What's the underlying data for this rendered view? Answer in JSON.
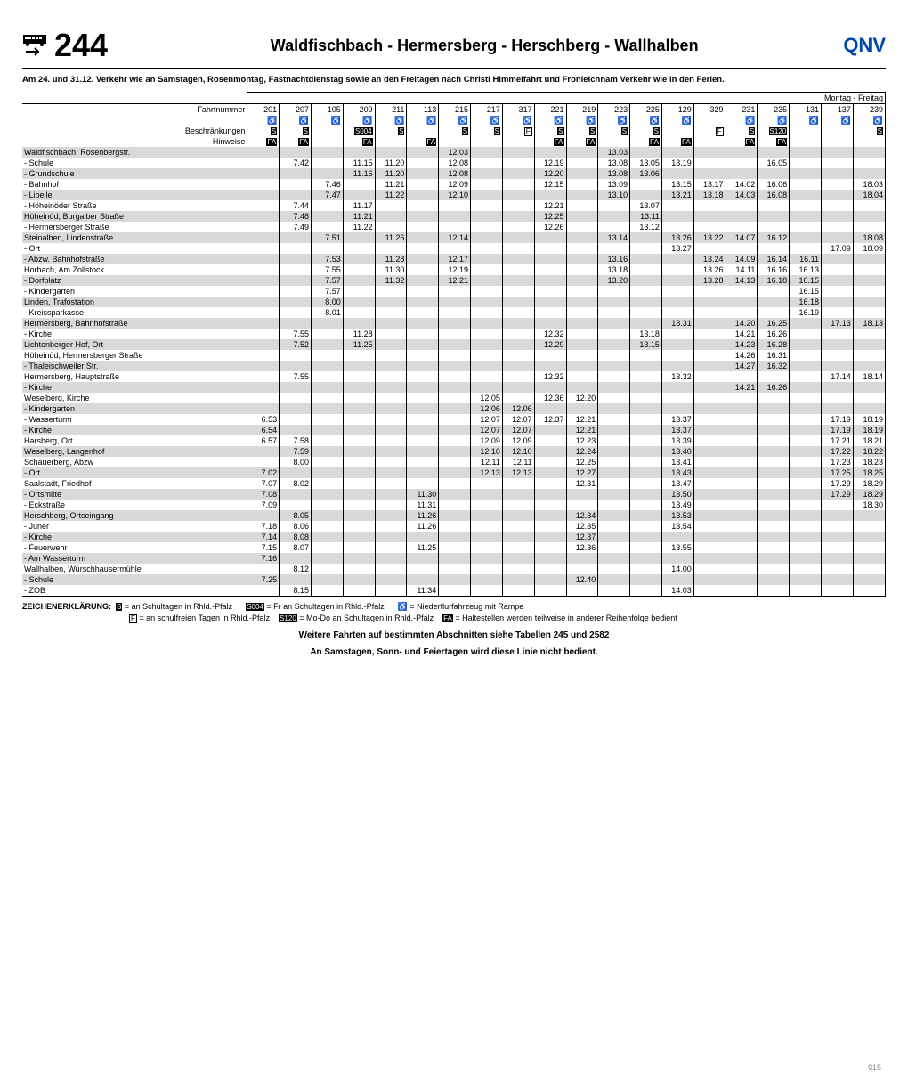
{
  "route_number": "244",
  "route_title": "Waldfischbach - Hermersberg - Herschberg - Wallhalben",
  "operator": "QNV",
  "top_note": "Am 24. und 31.12. Verkehr wie an Samstagen, Rosenmontag, Fastnachtdienstag sowie an den Freitagen nach Christi Himmelfahrt und Fronleichnam Verkehr wie in den Ferien.",
  "day_label": "Montag - Freitag",
  "row_labels": [
    "Fahrtnummer",
    "",
    "Beschränkungen",
    "Hinweise"
  ],
  "trips": [
    "201",
    "207",
    "105",
    "209",
    "211",
    "113",
    "215",
    "217",
    "317",
    "221",
    "219",
    "223",
    "225",
    "129",
    "329",
    "231",
    "235",
    "131",
    "137",
    "239"
  ],
  "ramp_row": [
    "r",
    "r",
    "r",
    "r",
    "r",
    "r",
    "r",
    "r",
    "r",
    "r",
    "r",
    "r",
    "r",
    "r",
    "",
    "r",
    "r",
    "r",
    "r",
    "r"
  ],
  "restrict_row": [
    "S",
    "S",
    "",
    "S004",
    "S",
    "",
    "S",
    "S",
    "F",
    "S",
    "S",
    "S",
    "S",
    "",
    "F",
    "S",
    "S120",
    "",
    "",
    "S"
  ],
  "hint_row": [
    "FA",
    "FA",
    "",
    "FA",
    "",
    "FA",
    "",
    "",
    "",
    "FA",
    "FA",
    "",
    "FA",
    "FA",
    "",
    "FA",
    "FA",
    "",
    "",
    ""
  ],
  "stops": [
    {
      "n": "Waldfischbach, Rosenbergstr.",
      "s": 1,
      "t": [
        "",
        "",
        "",
        "",
        "",
        "",
        "12.03",
        "",
        "",
        "",
        "",
        "13.03",
        "",
        "",
        "",
        "",
        "",
        "",
        "",
        ""
      ]
    },
    {
      "n": "- Schule",
      "s": 0,
      "t": [
        "",
        "7.42",
        "",
        "11.15",
        "11.20",
        "",
        "12.08",
        "",
        "",
        "12.19",
        "",
        "13.08",
        "13.05",
        "13.19",
        "",
        "",
        "16.05",
        "",
        "",
        ""
      ]
    },
    {
      "n": "- Grundschule",
      "s": 1,
      "t": [
        "",
        "",
        "",
        "11.16",
        "11.20",
        "",
        "12.08",
        "",
        "",
        "12.20",
        "",
        "13.08",
        "13.06",
        "",
        "",
        "",
        "",
        "",
        "",
        ""
      ]
    },
    {
      "n": "- Bahnhof",
      "s": 0,
      "t": [
        "",
        "",
        "7.46",
        "",
        "11.21",
        "",
        "12.09",
        "",
        "",
        "12.15",
        "",
        "13.09",
        "",
        "13.15",
        "13.17",
        "14.02",
        "16.06",
        "",
        "",
        "18.03"
      ]
    },
    {
      "n": "- Libelle",
      "s": 1,
      "t": [
        "",
        "",
        "7.47",
        "",
        "11.22",
        "",
        "12.10",
        "",
        "",
        "",
        "",
        "13.10",
        "",
        "13.21",
        "13.18",
        "14.03",
        "16.08",
        "",
        "",
        "18.04"
      ]
    },
    {
      "n": "- Höheinöder Straße",
      "s": 0,
      "t": [
        "",
        "7.44",
        "",
        "11.17",
        "",
        "",
        "",
        "",
        "",
        "12.21",
        "",
        "",
        "13.07",
        "",
        "",
        "",
        "",
        "",
        "",
        ""
      ]
    },
    {
      "n": "Höheinöd, Burgalber Straße",
      "s": 1,
      "t": [
        "",
        "7.48",
        "",
        "11.21",
        "",
        "",
        "",
        "",
        "",
        "12.25",
        "",
        "",
        "13.11",
        "",
        "",
        "",
        "",
        "",
        "",
        ""
      ]
    },
    {
      "n": "- Hermersberger Straße",
      "s": 0,
      "t": [
        "",
        "7.49",
        "",
        "11.22",
        "",
        "",
        "",
        "",
        "",
        "12.26",
        "",
        "",
        "13.12",
        "",
        "",
        "",
        "",
        "",
        "",
        ""
      ]
    },
    {
      "n": "Steinalben, Lindenstraße",
      "s": 1,
      "t": [
        "",
        "",
        "7.51",
        "",
        "11.26",
        "",
        "12.14",
        "",
        "",
        "",
        "",
        "13.14",
        "",
        "13.26",
        "13.22",
        "14.07",
        "16.12",
        "",
        "",
        "18.08"
      ]
    },
    {
      "n": "- Ort",
      "s": 0,
      "t": [
        "",
        "",
        "",
        "",
        "",
        "",
        "",
        "",
        "",
        "",
        "",
        "",
        "",
        "13.27",
        "",
        "",
        "",
        "",
        "17.09",
        "18.09"
      ]
    },
    {
      "n": "- Abzw. Bahnhofstraße",
      "s": 1,
      "t": [
        "",
        "",
        "7.53",
        "",
        "11.28",
        "",
        "12.17",
        "",
        "",
        "",
        "",
        "13.16",
        "",
        "",
        "13.24",
        "14.09",
        "16.14",
        "16.11",
        "",
        ""
      ]
    },
    {
      "n": "Horbach, Am Zollstock",
      "s": 0,
      "t": [
        "",
        "",
        "7.55",
        "",
        "11.30",
        "",
        "12.19",
        "",
        "",
        "",
        "",
        "13.18",
        "",
        "",
        "13.26",
        "14.11",
        "16.16",
        "16.13",
        "",
        ""
      ]
    },
    {
      "n": "- Dorfplatz",
      "s": 1,
      "t": [
        "",
        "",
        "7.57",
        "",
        "11.32",
        "",
        "12.21",
        "",
        "",
        "",
        "",
        "13.20",
        "",
        "",
        "13.28",
        "14.13",
        "16.18",
        "16.15",
        "",
        ""
      ]
    },
    {
      "n": "- Kindergarten",
      "s": 0,
      "t": [
        "",
        "",
        "7.57",
        "",
        "",
        "",
        "",
        "",
        "",
        "",
        "",
        "",
        "",
        "",
        "",
        "",
        "",
        "16.15",
        "",
        ""
      ]
    },
    {
      "n": "Linden, Trafostation",
      "s": 1,
      "t": [
        "",
        "",
        "8.00",
        "",
        "",
        "",
        "",
        "",
        "",
        "",
        "",
        "",
        "",
        "",
        "",
        "",
        "",
        "16.18",
        "",
        ""
      ]
    },
    {
      "n": "- Kreissparkasse",
      "s": 0,
      "t": [
        "",
        "",
        "8.01",
        "",
        "",
        "",
        "",
        "",
        "",
        "",
        "",
        "",
        "",
        "",
        "",
        "",
        "",
        "16.19",
        "",
        ""
      ]
    },
    {
      "n": "Hermersberg, Bahnhofstraße",
      "s": 1,
      "t": [
        "",
        "",
        "",
        "",
        "",
        "",
        "",
        "",
        "",
        "",
        "",
        "",
        "",
        "13.31",
        "",
        "14.20",
        "16.25",
        "",
        "17.13",
        "18.13"
      ]
    },
    {
      "n": "- Kirche",
      "s": 0,
      "t": [
        "",
        "7.55",
        "",
        "11.28",
        "",
        "",
        "",
        "",
        "",
        "12.32",
        "",
        "",
        "13.18",
        "",
        "",
        "14.21",
        "16.26",
        "",
        "",
        ""
      ]
    },
    {
      "n": "Lichtenberger Hof, Ort",
      "s": 1,
      "t": [
        "",
        "7.52",
        "",
        "11.25",
        "",
        "",
        "",
        "",
        "",
        "12.29",
        "",
        "",
        "13.15",
        "",
        "",
        "14.23",
        "16.28",
        "",
        "",
        ""
      ]
    },
    {
      "n": "Höheinöd, Hermersberger Straße",
      "s": 0,
      "t": [
        "",
        "",
        "",
        "",
        "",
        "",
        "",
        "",
        "",
        "",
        "",
        "",
        "",
        "",
        "",
        "14.26",
        "16.31",
        "",
        "",
        ""
      ]
    },
    {
      "n": "- Thaleischweiler Str.",
      "s": 1,
      "t": [
        "",
        "",
        "",
        "",
        "",
        "",
        "",
        "",
        "",
        "",
        "",
        "",
        "",
        "",
        "",
        "14.27",
        "16.32",
        "",
        "",
        ""
      ]
    },
    {
      "n": "Hermersberg, Hauptstraße",
      "s": 0,
      "t": [
        "",
        "7.55",
        "",
        "",
        "",
        "",
        "",
        "",
        "",
        "12.32",
        "",
        "",
        "",
        "13.32",
        "",
        "",
        "",
        "",
        "17.14",
        "18.14"
      ]
    },
    {
      "n": "- Kirche",
      "s": 1,
      "t": [
        "",
        "",
        "",
        "",
        "",
        "",
        "",
        "",
        "",
        "",
        "",
        "",
        "",
        "",
        "",
        "14.21",
        "16.26",
        "",
        "",
        ""
      ]
    },
    {
      "n": "Weselberg, Kirche",
      "s": 0,
      "t": [
        "",
        "",
        "",
        "",
        "",
        "",
        "",
        "12.05",
        "",
        "12.36",
        "12.20",
        "",
        "",
        "",
        "",
        "",
        "",
        "",
        "",
        ""
      ]
    },
    {
      "n": "- Kindergarten",
      "s": 1,
      "t": [
        "",
        "",
        "",
        "",
        "",
        "",
        "",
        "12.06",
        "12.06",
        "",
        "",
        "",
        "",
        "",
        "",
        "",
        "",
        "",
        "",
        ""
      ]
    },
    {
      "n": "- Wasserturm",
      "s": 0,
      "t": [
        "6.53",
        "",
        "",
        "",
        "",
        "",
        "",
        "12.07",
        "12.07",
        "12.37",
        "12.21",
        "",
        "",
        "13.37",
        "",
        "",
        "",
        "",
        "17.19",
        "18.19"
      ]
    },
    {
      "n": "- Kirche",
      "s": 1,
      "t": [
        "6.54",
        "",
        "",
        "",
        "",
        "",
        "",
        "12.07",
        "12.07",
        "",
        "12.21",
        "",
        "",
        "13.37",
        "",
        "",
        "",
        "",
        "17.19",
        "18.19"
      ]
    },
    {
      "n": "Harsberg, Ort",
      "s": 0,
      "t": [
        "6.57",
        "7.58",
        "",
        "",
        "",
        "",
        "",
        "12.09",
        "12.09",
        "",
        "12.23",
        "",
        "",
        "13.39",
        "",
        "",
        "",
        "",
        "17.21",
        "18.21"
      ]
    },
    {
      "n": "Weselberg, Langenhof",
      "s": 1,
      "t": [
        "",
        "7.59",
        "",
        "",
        "",
        "",
        "",
        "12.10",
        "12.10",
        "",
        "12.24",
        "",
        "",
        "13.40",
        "",
        "",
        "",
        "",
        "17.22",
        "18.22"
      ]
    },
    {
      "n": "Schauerberg, Abzw",
      "s": 0,
      "t": [
        "",
        "8.00",
        "",
        "",
        "",
        "",
        "",
        "12.11",
        "12.11",
        "",
        "12.25",
        "",
        "",
        "13.41",
        "",
        "",
        "",
        "",
        "17.23",
        "18.23"
      ]
    },
    {
      "n": "- Ort",
      "s": 1,
      "t": [
        "7.02",
        "",
        "",
        "",
        "",
        "",
        "",
        "12.13",
        "12.13",
        "",
        "12.27",
        "",
        "",
        "13.43",
        "",
        "",
        "",
        "",
        "17.25",
        "18.25"
      ]
    },
    {
      "n": "Saalstadt, Friedhof",
      "s": 0,
      "t": [
        "7.07",
        "8.02",
        "",
        "",
        "",
        "",
        "",
        "",
        "",
        "",
        "12.31",
        "",
        "",
        "13.47",
        "",
        "",
        "",
        "",
        "17.29",
        "18.29"
      ]
    },
    {
      "n": "- Ortsmitte",
      "s": 1,
      "t": [
        "7.08",
        "",
        "",
        "",
        "",
        "11.30",
        "",
        "",
        "",
        "",
        "",
        "",
        "",
        "13.50",
        "",
        "",
        "",
        "",
        "17.29",
        "18.29"
      ]
    },
    {
      "n": "- Eckstraße",
      "s": 0,
      "t": [
        "7.09",
        "",
        "",
        "",
        "",
        "11.31",
        "",
        "",
        "",
        "",
        "",
        "",
        "",
        "13.49",
        "",
        "",
        "",
        "",
        "",
        "18.30"
      ]
    },
    {
      "n": "Herschberg, Ortseingang",
      "s": 1,
      "t": [
        "",
        "8.05",
        "",
        "",
        "",
        "11.26",
        "",
        "",
        "",
        "",
        "12.34",
        "",
        "",
        "13.53",
        "",
        "",
        "",
        "",
        "",
        ""
      ]
    },
    {
      "n": "- Juner",
      "s": 0,
      "t": [
        "7.18",
        "8.06",
        "",
        "",
        "",
        "11.26",
        "",
        "",
        "",
        "",
        "12.35",
        "",
        "",
        "13.54",
        "",
        "",
        "",
        "",
        "",
        ""
      ]
    },
    {
      "n": "- Kirche",
      "s": 1,
      "t": [
        "7.14",
        "8.08",
        "",
        "",
        "",
        "",
        "",
        "",
        "",
        "",
        "12.37",
        "",
        "",
        "",
        "",
        "",
        "",
        "",
        "",
        ""
      ]
    },
    {
      "n": "- Feuerwehr",
      "s": 0,
      "t": [
        "7.15",
        "8.07",
        "",
        "",
        "",
        "11.25",
        "",
        "",
        "",
        "",
        "12.36",
        "",
        "",
        "13.55",
        "",
        "",
        "",
        "",
        "",
        ""
      ]
    },
    {
      "n": "- Am Wasserturm",
      "s": 1,
      "t": [
        "7.16",
        "",
        "",
        "",
        "",
        "",
        "",
        "",
        "",
        "",
        "",
        "",
        "",
        "",
        "",
        "",
        "",
        "",
        "",
        ""
      ]
    },
    {
      "n": "Wallhalben, Würschhausermühle",
      "s": 0,
      "t": [
        "",
        "8.12",
        "",
        "",
        "",
        "",
        "",
        "",
        "",
        "",
        "",
        "",
        "",
        "14.00",
        "",
        "",
        "",
        "",
        "",
        ""
      ]
    },
    {
      "n": "- Schule",
      "s": 1,
      "t": [
        "7.25",
        "",
        "",
        "",
        "",
        "",
        "",
        "",
        "",
        "",
        "12.40",
        "",
        "",
        "",
        "",
        "",
        "",
        "",
        "",
        ""
      ]
    },
    {
      "n": "- ZOB",
      "s": 0,
      "t": [
        "",
        "8.15",
        "",
        "",
        "",
        "11.34",
        "",
        "",
        "",
        "",
        "",
        "",
        "",
        "14.03",
        "",
        "",
        "",
        "",
        "",
        ""
      ]
    }
  ],
  "legend_label": "ZEICHENERKLÄRUNG:",
  "legend": [
    {
      "sym": "S",
      "txt": "= an Schultagen in Rhld.-Pfalz"
    },
    {
      "sym": "S004",
      "txt": "= Fr an Schultagen in Rhld.-Pfalz"
    },
    {
      "sym": "ramp",
      "txt": "= Niederflurfahrzeug mit Rampe"
    },
    {
      "sym": "F",
      "txt": "= an schulfreien Tagen in Rhld.-Pfalz"
    },
    {
      "sym": "S120",
      "txt": "= Mo-Do an Schultagen in Rhld.-Pfalz"
    },
    {
      "sym": "FA",
      "txt": "= Haltestellen werden teilweise in anderer Reihenfolge bedient"
    }
  ],
  "footer1": "Weitere Fahrten auf bestimmten Abschnitten siehe Tabellen 245 und 2582",
  "footer2": "An Samstagen, Sonn- und Feiertagen wird diese Linie nicht bedient.",
  "page": "915"
}
